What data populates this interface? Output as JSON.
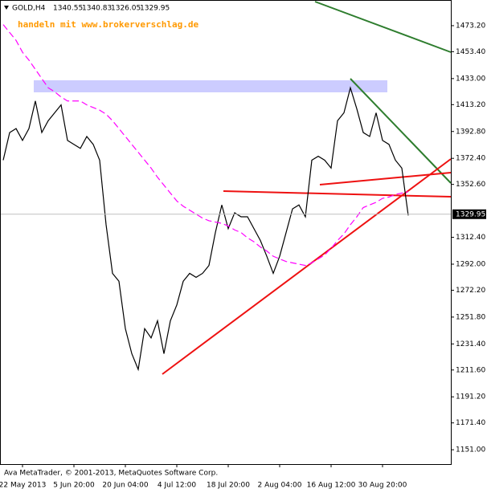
{
  "chart_data": {
    "type": "line",
    "title": "GOLD,H4",
    "ohlc": [
      1340.55,
      1340.83,
      1326.05,
      1329.95
    ],
    "watermark": "handeln mit www.brokerverschlag.de",
    "footer": "Ava MetaTrader, © 2001-2013, MetaQuotes Software Corp.",
    "last_price": 1329.95,
    "categories": [
      null,
      null,
      null,
      "22 May 2013",
      null,
      null,
      null,
      null,
      null,
      null,
      null,
      "5 Jun 20:00",
      null,
      null,
      null,
      null,
      null,
      null,
      null,
      "20 Jun 04:00",
      null,
      null,
      null,
      null,
      null,
      null,
      null,
      "4 Jul 12:00",
      null,
      null,
      null,
      null,
      null,
      null,
      null,
      "18 Jul 20:00",
      null,
      null,
      null,
      null,
      null,
      null,
      null,
      "2 Aug 04:00",
      null,
      null,
      null,
      null,
      null,
      null,
      null,
      "16 Aug 12:00",
      null,
      null,
      null,
      null,
      null,
      null,
      null,
      "30 Aug 20:00",
      null,
      null,
      null,
      null
    ],
    "series": [
      {
        "color": "#000000",
        "values": [
          1371,
          1392,
          1395,
          1386,
          1395,
          1416,
          1392,
          1401,
          1407,
          1413,
          1386,
          1383,
          1380,
          1389,
          1383,
          1371,
          1322,
          1285,
          1279,
          1243,
          1224,
          1212,
          1243,
          1236,
          1249,
          1224,
          1249,
          1261,
          1279,
          1285,
          1282,
          1285,
          1291,
          1316,
          1337,
          1319,
          1331,
          1328,
          1328,
          1319,
          1310,
          1298,
          1285,
          1298,
          1316,
          1334,
          1337,
          1328,
          1371,
          1374,
          1371,
          1365,
          1401,
          1407,
          1426,
          1410,
          1392,
          1389,
          1407,
          1386,
          1383,
          1371,
          1365,
          1329
        ]
      },
      {
        "color": "#ff00ff",
        "dashed": true,
        "values": [
          1474,
          1468,
          1462,
          1453,
          1447,
          1440,
          1433,
          1426,
          1423,
          1419,
          1416,
          1416,
          1416,
          1413,
          1411,
          1409,
          1406,
          1401,
          1395,
          1389,
          1383,
          1377,
          1371,
          1365,
          1358,
          1352,
          1346,
          1340,
          1336,
          1333,
          1330,
          1327,
          1325,
          1324,
          1323,
          1321,
          1318,
          1316,
          1312,
          1309,
          1305,
          1302,
          1298,
          1296,
          1294,
          1293,
          1292,
          1291,
          1293,
          1296,
          1299,
          1304,
          1310,
          1315,
          1322,
          1328,
          1335,
          1337,
          1339,
          1342,
          1343,
          1345,
          1346,
          1347
        ]
      }
    ],
    "ylim": [
      1140.1,
      1492.7
    ],
    "yticks": [
      {
        "value": 1473.2,
        "label": "1473.20"
      },
      {
        "value": 1453.4,
        "label": "1453.40"
      },
      {
        "value": 1433,
        "label": "1433.00"
      },
      {
        "value": 1413.2,
        "label": "1413.20"
      },
      {
        "value": 1392.8,
        "label": "1392.80"
      },
      {
        "value": 1372.4,
        "label": "1372.40"
      },
      {
        "value": 1352.6,
        "label": "1352.60"
      },
      {
        "value": 1312.4,
        "label": "1312.40"
      },
      {
        "value": 1292,
        "label": "1292.00"
      },
      {
        "value": 1272.2,
        "label": "1272.20"
      },
      {
        "value": 1251.8,
        "label": "1251.80"
      },
      {
        "value": 1231.4,
        "label": "1231.40"
      },
      {
        "value": 1211.6,
        "label": "1211.60"
      },
      {
        "value": 1191.2,
        "label": "1191.20"
      },
      {
        "value": 1171.4,
        "label": "1171.40"
      },
      {
        "value": 1151,
        "label": "1151.00"
      }
    ],
    "grid": false
  }
}
